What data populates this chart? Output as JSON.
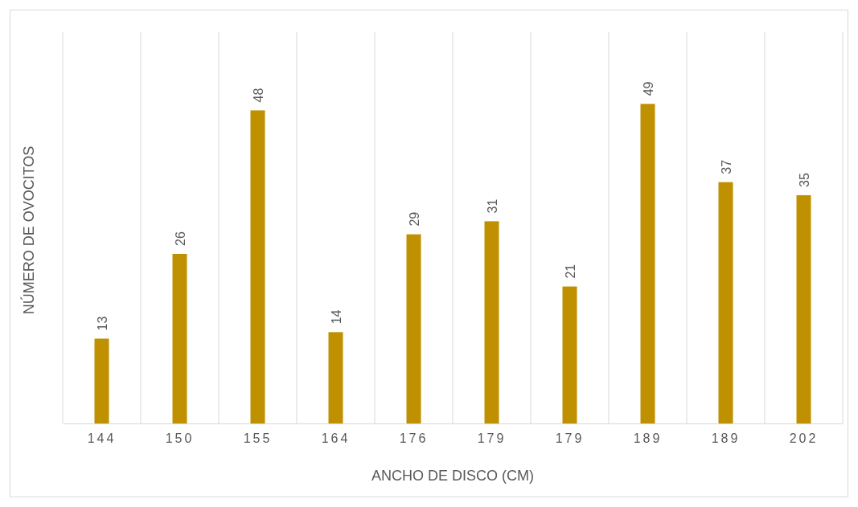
{
  "chart_data": {
    "type": "bar",
    "xlabel": "ANCHO DE DISCO (CM)",
    "ylabel": "NÚMERO DE OVOCITOS",
    "categories": [
      "144",
      "150",
      "155",
      "164",
      "176",
      "179",
      "179",
      "189",
      "189",
      "202"
    ],
    "values": [
      13,
      26,
      48,
      14,
      29,
      31,
      21,
      49,
      37,
      35
    ],
    "color": "#bf9000",
    "ylim": [
      0,
      60
    ],
    "data_labels": true,
    "grid": "x",
    "tick_labels": "x"
  }
}
